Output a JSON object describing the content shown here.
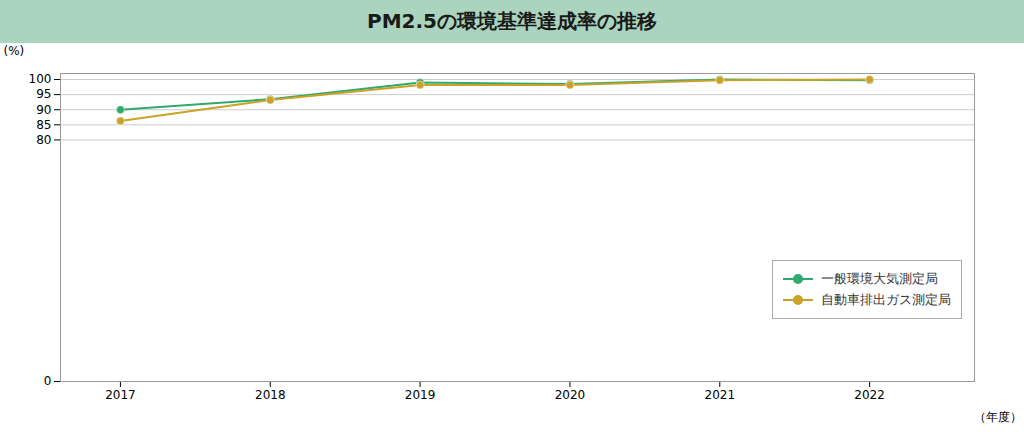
{
  "chart_data": {
    "type": "line",
    "title": "PM2.5の環境基準達成率の推移",
    "x": [
      2017,
      2018,
      2019,
      2020,
      2021,
      2022
    ],
    "series": [
      {
        "name": "一般環境大気測定局",
        "color": "#2eaa6e",
        "marker": "circle",
        "values": [
          90.0,
          93.5,
          99.0,
          98.5,
          100.0,
          99.8
        ]
      },
      {
        "name": "自動車排出ガス測定局",
        "color": "#c9a227",
        "marker": "circle",
        "values": [
          86.3,
          93.2,
          98.2,
          98.2,
          99.8,
          100.0
        ]
      }
    ],
    "x_label": "（年度）",
    "y_label": "(%)",
    "xlim": [
      2016.6,
      2022.7
    ],
    "xticks": [
      2017,
      2018,
      2019,
      2020,
      2021,
      2022
    ],
    "ylim": [
      0,
      102
    ],
    "yticks": [
      0,
      80,
      85,
      90,
      95,
      100
    ],
    "grid": true,
    "legend": "lower right"
  }
}
